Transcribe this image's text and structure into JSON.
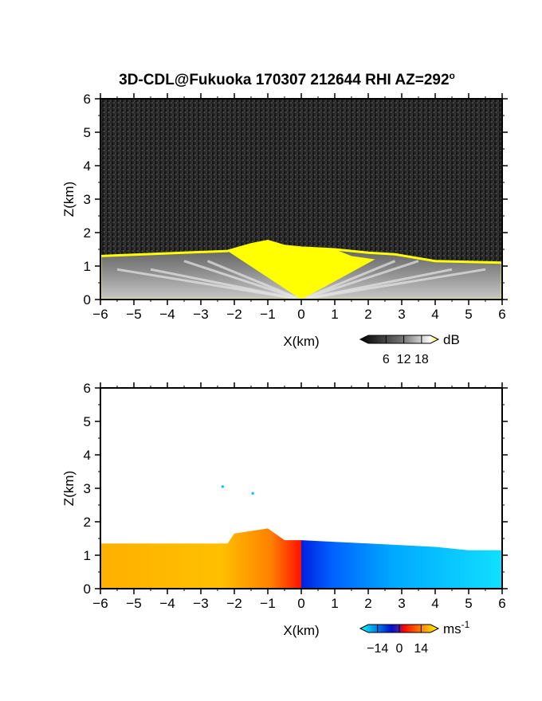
{
  "chart_data": [
    {
      "type": "heatmap",
      "title": "3D-CDL@Fukuoka 170307 212644 RHI AZ=292",
      "title_superscript": "o",
      "xlabel": "X(km)",
      "ylabel": "Z(km)",
      "xlim": [
        -6,
        6
      ],
      "ylim": [
        0,
        6
      ],
      "x_ticks": [
        "-6",
        "-5",
        "-4",
        "-3",
        "-2",
        "-1",
        "0",
        "1",
        "2",
        "3",
        "4",
        "5",
        "6"
      ],
      "y_ticks": [
        "0",
        "1",
        "2",
        "3",
        "4",
        "5",
        "6"
      ],
      "background": "noise (dark gray)",
      "colormap": "grayscale to yellow",
      "colorbar": {
        "label": "dB",
        "ticks": [
          "6",
          "12",
          "18"
        ],
        "range": [
          0,
          21
        ],
        "colors": [
          "#000000",
          "#ffffff",
          "#ffff00"
        ]
      },
      "echo_top_km": {
        "x": [
          -6,
          -2.2,
          -1.5,
          -1,
          -0.5,
          0,
          1,
          2,
          2.8,
          4,
          6
        ],
        "z": [
          1.3,
          1.45,
          1.65,
          1.75,
          1.6,
          1.55,
          1.5,
          1.4,
          1.35,
          1.15,
          1.1
        ]
      }
    },
    {
      "type": "heatmap",
      "xlabel": "X(km)",
      "ylabel": "Z(km)",
      "xlim": [
        -6,
        6
      ],
      "ylim": [
        0,
        6
      ],
      "x_ticks": [
        "-6",
        "-5",
        "-4",
        "-3",
        "-2",
        "-1",
        "0",
        "1",
        "2",
        "3",
        "4",
        "5",
        "6"
      ],
      "y_ticks": [
        "0",
        "1",
        "2",
        "3",
        "4",
        "5",
        "6"
      ],
      "colormap": "cyan-blue / red-yellow (Doppler velocity)",
      "colorbar": {
        "label": "ms",
        "label_superscript": "-1",
        "ticks": [
          "−14",
          "0",
          "14"
        ],
        "range": [
          -20,
          20
        ],
        "colors": [
          "#00ffff",
          "#0000cc",
          "#ff0000",
          "#ffff00"
        ]
      },
      "velocity_sign": {
        "x_lt_0": "positive (receding, red-yellow)",
        "x_gt_0": "negative (approaching, blue-cyan)"
      },
      "echo_top_km": {
        "x": [
          -6,
          -2.2,
          -2,
          -1,
          -0.5,
          0,
          1,
          2,
          3,
          4,
          5,
          6
        ],
        "z": [
          1.35,
          1.35,
          1.65,
          1.8,
          1.45,
          1.45,
          1.4,
          1.35,
          1.3,
          1.25,
          1.15,
          1.15
        ]
      },
      "isolated_points_km": [
        [
          -2.35,
          3.05
        ],
        [
          -1.45,
          2.85
        ]
      ]
    }
  ]
}
